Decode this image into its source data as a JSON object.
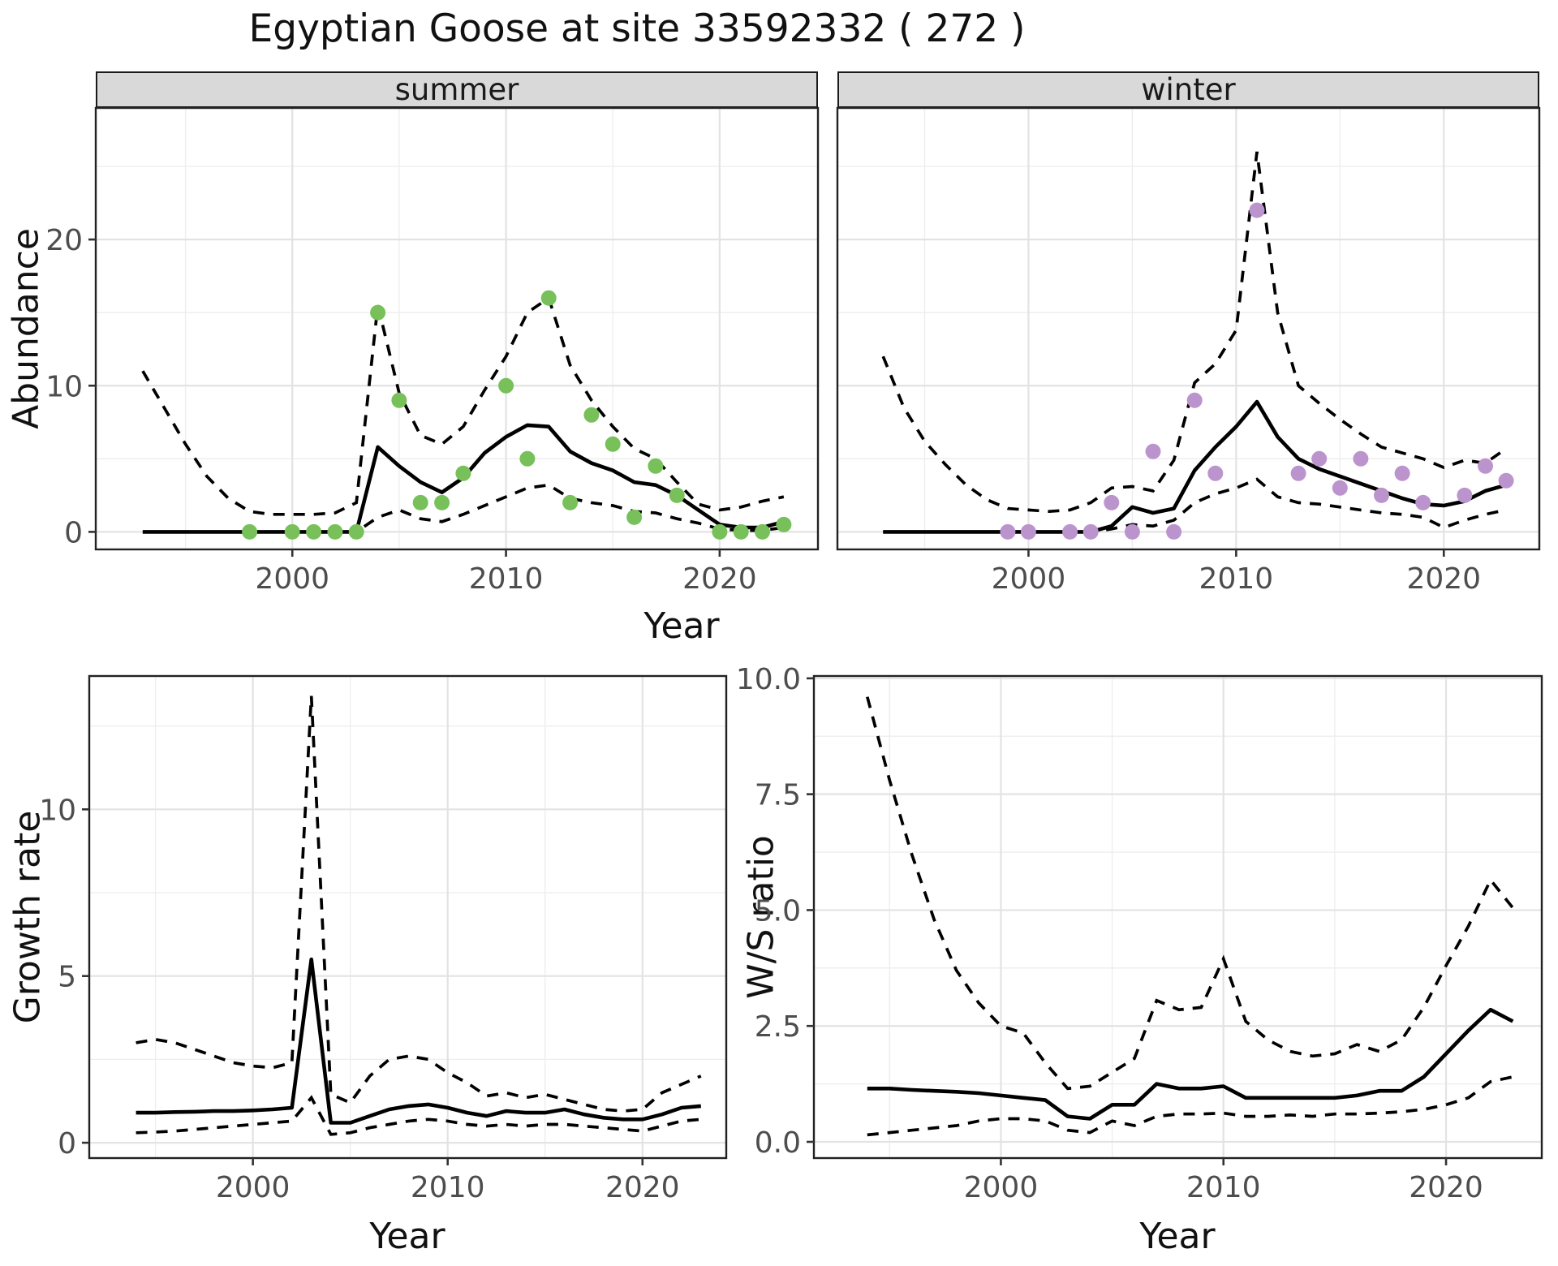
{
  "title": "Egyptian Goose at site 33592332 ( 272 )",
  "chart_data": [
    {
      "id": "abundance",
      "type": "line",
      "ylabel": "Abundance",
      "xlabel": "Year",
      "legend_position": "none",
      "grid": true,
      "xlim": [
        1990.8,
        2024.6
      ],
      "ylim": [
        -1.2,
        29
      ],
      "x_tick_values": [
        2000,
        2010,
        2020
      ],
      "x_tick_labels": [
        "2000",
        "2010",
        "2020"
      ],
      "y_tick_values": [
        0,
        10,
        20
      ],
      "y_tick_labels": [
        "0",
        "10",
        "20"
      ],
      "x_minor": [
        1995,
        2005,
        2015
      ],
      "y_minor": [
        5,
        15,
        25
      ],
      "line_color": "#000000",
      "facets": [
        {
          "label": "summer",
          "point_color": "#77C05A",
          "years": [
            1993,
            1994,
            1995,
            1996,
            1997,
            1998,
            1999,
            2000,
            2001,
            2002,
            2003,
            2004,
            2005,
            2006,
            2007,
            2008,
            2009,
            2010,
            2011,
            2012,
            2013,
            2014,
            2015,
            2016,
            2017,
            2018,
            2019,
            2020,
            2021,
            2022,
            2023
          ],
          "fit": [
            0,
            0,
            0,
            0,
            0,
            0,
            0,
            0,
            0,
            0,
            0,
            5.8,
            4.5,
            3.4,
            2.7,
            3.7,
            5.4,
            6.5,
            7.3,
            7.2,
            5.5,
            4.7,
            4.2,
            3.4,
            3.2,
            2.5,
            1.5,
            0.5,
            0.3,
            0.3,
            0.7
          ],
          "upper": [
            11,
            8.5,
            6,
            3.8,
            2.3,
            1.4,
            1.2,
            1.2,
            1.2,
            1.3,
            2,
            15.5,
            9.5,
            6.6,
            6,
            7.2,
            9.7,
            12,
            15,
            16,
            11.4,
            9,
            7.2,
            5.7,
            5,
            3.4,
            1.9,
            1.5,
            1.7,
            2.1,
            2.4
          ],
          "lower": [
            0,
            0,
            0,
            0,
            0,
            0,
            0,
            0,
            0,
            0,
            0,
            1,
            1.5,
            0.9,
            0.7,
            1.2,
            1.8,
            2.4,
            3,
            3.2,
            2.3,
            2,
            1.8,
            1.4,
            1.3,
            0.9,
            0.6,
            0.2,
            0.1,
            0.1,
            0.3
          ],
          "observed": [
            [
              1998,
              0
            ],
            [
              2000,
              0
            ],
            [
              2001,
              0
            ],
            [
              2002,
              0
            ],
            [
              2003,
              0
            ],
            [
              2004,
              15
            ],
            [
              2005,
              9
            ],
            [
              2006,
              2
            ],
            [
              2007,
              2
            ],
            [
              2008,
              4
            ],
            [
              2010,
              10
            ],
            [
              2011,
              5
            ],
            [
              2012,
              16
            ],
            [
              2013,
              2
            ],
            [
              2014,
              8
            ],
            [
              2015,
              6
            ],
            [
              2016,
              1
            ],
            [
              2017,
              4.5
            ],
            [
              2018,
              2.5
            ],
            [
              2020,
              0
            ],
            [
              2021,
              0
            ],
            [
              2022,
              0
            ],
            [
              2023,
              0.5
            ]
          ]
        },
        {
          "label": "winter",
          "point_color": "#BC94CD",
          "years": [
            1993,
            1994,
            1995,
            1996,
            1997,
            1998,
            1999,
            2000,
            2001,
            2002,
            2003,
            2004,
            2005,
            2006,
            2007,
            2008,
            2009,
            2010,
            2011,
            2012,
            2013,
            2014,
            2015,
            2016,
            2017,
            2018,
            2019,
            2020,
            2021,
            2022,
            2023
          ],
          "fit": [
            0,
            0,
            0,
            0,
            0,
            0,
            0,
            0,
            0,
            0,
            0,
            0.4,
            1.7,
            1.3,
            1.6,
            4.2,
            5.8,
            7.2,
            8.9,
            6.5,
            5,
            4.3,
            3.8,
            3.3,
            2.8,
            2.3,
            1.9,
            1.8,
            2.1,
            2.8,
            3.2
          ],
          "upper": [
            12,
            8.5,
            6.2,
            4.6,
            3.2,
            2.2,
            1.6,
            1.5,
            1.4,
            1.5,
            2,
            3,
            3.1,
            2.8,
            4.9,
            10.2,
            11.5,
            13.8,
            26,
            15,
            10,
            8.8,
            7.7,
            6.7,
            5.8,
            5.4,
            5,
            4.4,
            4.9,
            4.7,
            5.7
          ],
          "lower": [
            0,
            0,
            0,
            0,
            0,
            0,
            0,
            0,
            0,
            0,
            0,
            0.2,
            0.5,
            0.4,
            0.8,
            2,
            2.6,
            3,
            3.6,
            2.4,
            2,
            1.9,
            1.7,
            1.5,
            1.3,
            1.2,
            1,
            0.3,
            0.8,
            1.2,
            1.5
          ],
          "observed": [
            [
              1999,
              0
            ],
            [
              2000,
              0
            ],
            [
              2002,
              0
            ],
            [
              2003,
              0
            ],
            [
              2004,
              2
            ],
            [
              2005,
              0
            ],
            [
              2006,
              5.5
            ],
            [
              2007,
              0
            ],
            [
              2008,
              9
            ],
            [
              2009,
              4
            ],
            [
              2011,
              22
            ],
            [
              2013,
              4
            ],
            [
              2014,
              5
            ],
            [
              2015,
              3
            ],
            [
              2016,
              5
            ],
            [
              2017,
              2.5
            ],
            [
              2018,
              4
            ],
            [
              2019,
              2
            ],
            [
              2021,
              2.5
            ],
            [
              2022,
              4.5
            ],
            [
              2023,
              3.5
            ]
          ]
        }
      ]
    },
    {
      "id": "growth_rate",
      "type": "line",
      "ylabel": "Growth rate",
      "xlabel": "Year",
      "legend_position": "none",
      "grid": true,
      "xlim": [
        1991.6,
        2024.3
      ],
      "ylim": [
        -0.46,
        14
      ],
      "x_tick_values": [
        2000,
        2010,
        2020
      ],
      "x_tick_labels": [
        "2000",
        "2010",
        "2020"
      ],
      "y_tick_values": [
        0,
        5,
        10
      ],
      "y_tick_labels": [
        "0",
        "5",
        "10"
      ],
      "x_minor": [
        1995,
        2005,
        2015
      ],
      "y_minor": [
        2.5,
        7.5,
        12.5
      ],
      "line_color": "#000000",
      "years": [
        1994,
        1995,
        1996,
        1997,
        1998,
        1999,
        2000,
        2001,
        2002,
        2003,
        2004,
        2005,
        2006,
        2007,
        2008,
        2009,
        2010,
        2011,
        2012,
        2013,
        2014,
        2015,
        2016,
        2017,
        2018,
        2019,
        2020,
        2021,
        2022,
        2023
      ],
      "fit": [
        0.9,
        0.9,
        0.92,
        0.93,
        0.95,
        0.95,
        0.97,
        1,
        1.05,
        5.5,
        0.6,
        0.6,
        0.8,
        1,
        1.1,
        1.15,
        1.05,
        0.9,
        0.8,
        0.95,
        0.9,
        0.9,
        1,
        0.85,
        0.75,
        0.7,
        0.7,
        0.85,
        1.05,
        1.1
      ],
      "upper": [
        3,
        3.1,
        3,
        2.8,
        2.6,
        2.4,
        2.3,
        2.25,
        2.4,
        13.4,
        1.45,
        1.2,
        2,
        2.5,
        2.6,
        2.5,
        2.1,
        1.8,
        1.4,
        1.5,
        1.35,
        1.45,
        1.3,
        1.15,
        1,
        0.95,
        1,
        1.5,
        1.75,
        2
      ],
      "lower": [
        0.3,
        0.32,
        0.35,
        0.4,
        0.45,
        0.5,
        0.55,
        0.6,
        0.65,
        1.35,
        0.25,
        0.3,
        0.45,
        0.55,
        0.65,
        0.7,
        0.65,
        0.55,
        0.5,
        0.55,
        0.5,
        0.55,
        0.55,
        0.5,
        0.45,
        0.4,
        0.35,
        0.5,
        0.65,
        0.7
      ],
      "observed": []
    },
    {
      "id": "ws_ratio",
      "type": "line",
      "ylabel": "W/S ratio",
      "xlabel": "Year",
      "legend_position": "none",
      "grid": true,
      "xlim": [
        1991.6,
        2024.3
      ],
      "ylim": [
        -0.35,
        10.05
      ],
      "x_tick_values": [
        2000,
        2010,
        2020
      ],
      "x_tick_labels": [
        "2000",
        "2010",
        "2020"
      ],
      "y_tick_values": [
        0,
        2.5,
        5,
        7.5,
        10
      ],
      "y_tick_labels": [
        "0.0",
        "2.5",
        "5.0",
        "7.5",
        "10.0"
      ],
      "x_minor": [
        1995,
        2005,
        2015
      ],
      "y_minor": [
        1.25,
        3.75,
        6.25,
        8.75
      ],
      "line_color": "#000000",
      "years": [
        1994,
        1995,
        1996,
        1997,
        1998,
        1999,
        2000,
        2001,
        2002,
        2003,
        2004,
        2005,
        2006,
        2007,
        2008,
        2009,
        2010,
        2011,
        2012,
        2013,
        2014,
        2015,
        2016,
        2017,
        2018,
        2019,
        2020,
        2021,
        2022,
        2023
      ],
      "fit": [
        1.15,
        1.15,
        1.12,
        1.1,
        1.08,
        1.05,
        1,
        0.95,
        0.9,
        0.55,
        0.5,
        0.8,
        0.8,
        1.25,
        1.15,
        1.15,
        1.2,
        0.95,
        0.95,
        0.95,
        0.95,
        0.95,
        1,
        1.1,
        1.1,
        1.4,
        1.9,
        2.4,
        2.85,
        2.6
      ],
      "upper": [
        9.6,
        7.8,
        6.2,
        4.8,
        3.7,
        3,
        2.5,
        2.35,
        1.7,
        1.15,
        1.2,
        1.5,
        1.8,
        3.05,
        2.85,
        2.9,
        3.95,
        2.6,
        2.2,
        1.95,
        1.85,
        1.9,
        2.1,
        1.95,
        2.2,
        2.9,
        3.8,
        4.65,
        5.65,
        5.05
      ],
      "lower": [
        0.15,
        0.2,
        0.25,
        0.3,
        0.35,
        0.45,
        0.5,
        0.5,
        0.45,
        0.25,
        0.2,
        0.45,
        0.35,
        0.55,
        0.6,
        0.6,
        0.62,
        0.55,
        0.55,
        0.58,
        0.55,
        0.6,
        0.6,
        0.62,
        0.65,
        0.7,
        0.8,
        0.95,
        1.3,
        1.4
      ],
      "observed": []
    }
  ]
}
